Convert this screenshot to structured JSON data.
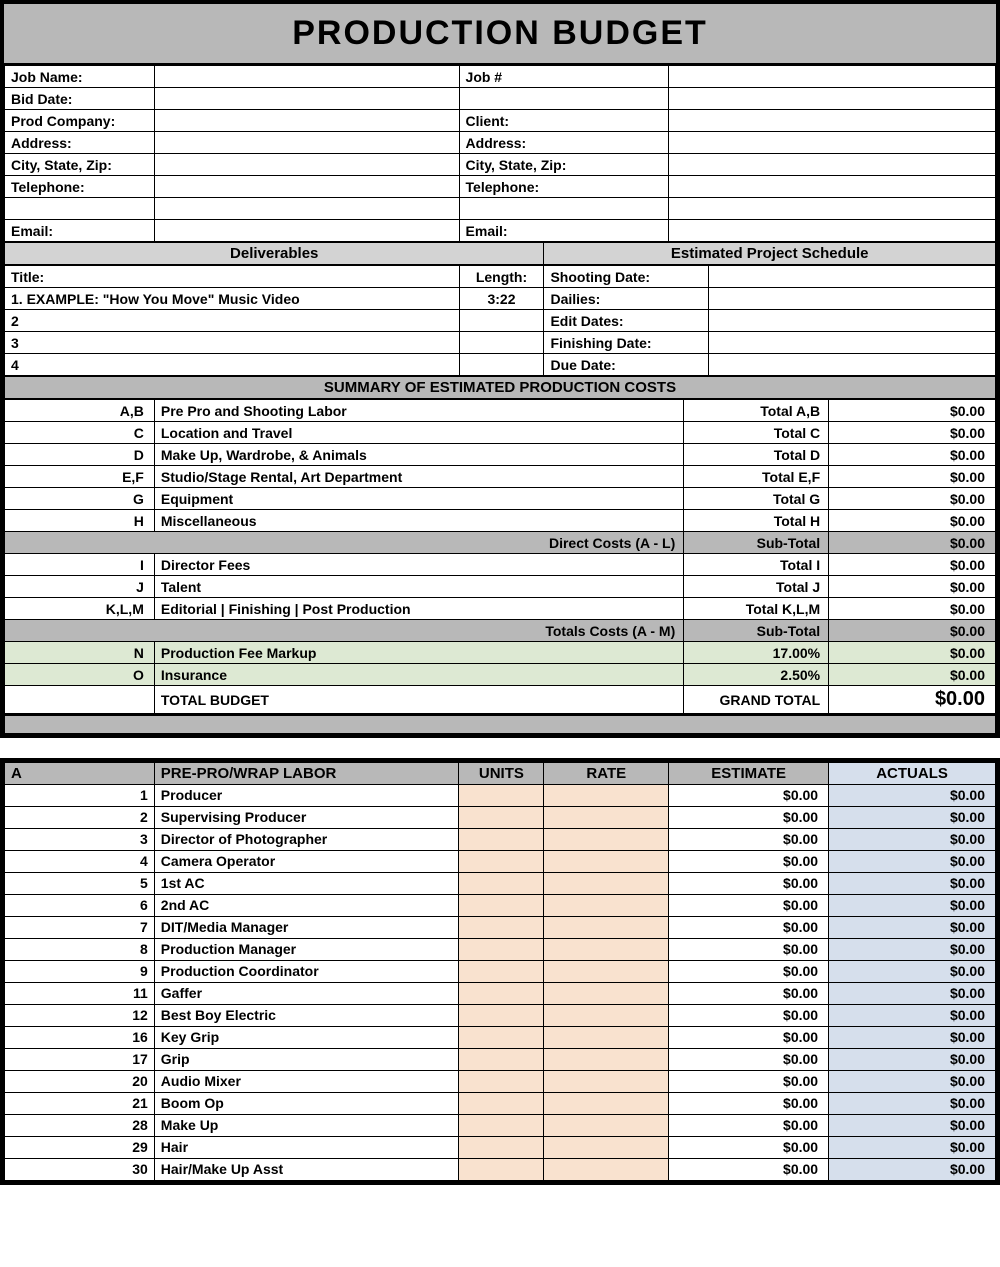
{
  "title": "PRODUCTION BUDGET",
  "info_left": [
    {
      "label": "Job Name:",
      "value": ""
    },
    {
      "label": "Bid Date:",
      "value": ""
    },
    {
      "label": "Prod Company:",
      "value": ""
    },
    {
      "label": "Address:",
      "value": ""
    },
    {
      "label": "City, State, Zip:",
      "value": ""
    },
    {
      "label": "Telephone:",
      "value": ""
    },
    {
      "label": "",
      "value": ""
    },
    {
      "label": "Email:",
      "value": ""
    }
  ],
  "info_right": [
    {
      "label": "Job #",
      "value": ""
    },
    {
      "label": "",
      "value": ""
    },
    {
      "label": "Client:",
      "value": ""
    },
    {
      "label": "Address:",
      "value": ""
    },
    {
      "label": "City, State, Zip:",
      "value": ""
    },
    {
      "label": "Telephone:",
      "value": ""
    },
    {
      "label": "",
      "value": ""
    },
    {
      "label": "Email:",
      "value": ""
    }
  ],
  "deliverables": {
    "header": "Deliverables",
    "title_label": "Title:",
    "length_label": "Length:",
    "rows": [
      {
        "title": "1. EXAMPLE: \"How You Move\" Music Video",
        "length": "3:22"
      },
      {
        "title": "2",
        "length": ""
      },
      {
        "title": "3",
        "length": ""
      },
      {
        "title": "4",
        "length": ""
      }
    ]
  },
  "schedule": {
    "header": "Estimated Project Schedule",
    "rows": [
      {
        "label": "Shooting Date:",
        "value": ""
      },
      {
        "label": "Dailies:",
        "value": ""
      },
      {
        "label": "Edit Dates:",
        "value": ""
      },
      {
        "label": "Finishing Date:",
        "value": ""
      },
      {
        "label": "Due Date:",
        "value": ""
      }
    ]
  },
  "summary": {
    "header": "SUMMARY OF ESTIMATED PRODUCTION COSTS",
    "items": [
      {
        "code": "A,B",
        "desc": "Pre Pro and Shooting Labor",
        "total_label": "Total A,B",
        "amount": "$0.00"
      },
      {
        "code": "C",
        "desc": "Location and Travel",
        "total_label": "Total C",
        "amount": "$0.00"
      },
      {
        "code": "D",
        "desc": "Make Up, Wardrobe, & Animals",
        "total_label": "Total D",
        "amount": "$0.00"
      },
      {
        "code": "E,F",
        "desc": "Studio/Stage Rental, Art Department",
        "total_label": "Total E,F",
        "amount": "$0.00"
      },
      {
        "code": "G",
        "desc": "Equipment",
        "total_label": "Total G",
        "amount": "$0.00"
      },
      {
        "code": "H",
        "desc": "Miscellaneous",
        "total_label": "Total H",
        "amount": "$0.00"
      }
    ],
    "direct_costs": {
      "label": "Direct Costs (A - L)",
      "sub_label": "Sub-Total",
      "amount": "$0.00"
    },
    "items2": [
      {
        "code": "I",
        "desc": "Director Fees",
        "total_label": "Total I",
        "amount": "$0.00"
      },
      {
        "code": "J",
        "desc": "Talent",
        "total_label": "Total J",
        "amount": "$0.00"
      },
      {
        "code": "K,L,M",
        "desc": "Editorial | Finishing | Post Production",
        "total_label": "Total K,L,M",
        "amount": "$0.00"
      }
    ],
    "totals_costs": {
      "label": "Totals Costs (A - M)",
      "sub_label": "Sub-Total",
      "amount": "$0.00"
    },
    "markup": {
      "code": "N",
      "desc": " Production Fee Markup",
      "pct": "17.00%",
      "amount": "$0.00"
    },
    "insurance": {
      "code": "O",
      "desc": "Insurance",
      "pct": "2.50%",
      "amount": "$0.00"
    },
    "total_budget": {
      "desc": "TOTAL BUDGET",
      "label": "GRAND TOTAL",
      "amount": "$0.00"
    }
  },
  "detail": {
    "section_code": "A",
    "section_title": "PRE-PRO/WRAP LABOR",
    "col_units": "UNITS",
    "col_rate": "RATE",
    "col_estimate": "ESTIMATE",
    "col_actuals": "ACTUALS",
    "rows": [
      {
        "n": "1",
        "role": "Producer",
        "est": "$0.00",
        "act": "$0.00"
      },
      {
        "n": "2",
        "role": "Supervising Producer",
        "est": "$0.00",
        "act": "$0.00"
      },
      {
        "n": "3",
        "role": "Director of Photographer",
        "est": "$0.00",
        "act": "$0.00"
      },
      {
        "n": "4",
        "role": "Camera Operator",
        "est": "$0.00",
        "act": "$0.00"
      },
      {
        "n": "5",
        "role": "1st AC",
        "est": "$0.00",
        "act": "$0.00"
      },
      {
        "n": "6",
        "role": "2nd AC",
        "est": "$0.00",
        "act": "$0.00"
      },
      {
        "n": "7",
        "role": "DIT/Media Manager",
        "est": "$0.00",
        "act": "$0.00"
      },
      {
        "n": "8",
        "role": "Production Manager",
        "est": "$0.00",
        "act": "$0.00"
      },
      {
        "n": "9",
        "role": "Production Coordinator",
        "est": "$0.00",
        "act": "$0.00"
      },
      {
        "n": "11",
        "role": "Gaffer",
        "est": "$0.00",
        "act": "$0.00"
      },
      {
        "n": "12",
        "role": "Best Boy Electric",
        "est": "$0.00",
        "act": "$0.00"
      },
      {
        "n": "16",
        "role": "Key Grip",
        "est": "$0.00",
        "act": "$0.00"
      },
      {
        "n": "17",
        "role": "Grip",
        "est": "$0.00",
        "act": "$0.00"
      },
      {
        "n": "20",
        "role": "Audio Mixer",
        "est": "$0.00",
        "act": "$0.00"
      },
      {
        "n": "21",
        "role": "Boom Op",
        "est": "$0.00",
        "act": "$0.00"
      },
      {
        "n": "28",
        "role": "Make Up",
        "est": "$0.00",
        "act": "$0.00"
      },
      {
        "n": "29",
        "role": "Hair",
        "est": "$0.00",
        "act": "$0.00"
      },
      {
        "n": "30",
        "role": "Hair/Make Up Asst",
        "est": "$0.00",
        "act": "$0.00"
      }
    ]
  },
  "colors": {
    "grey_header": "#b8b8b8",
    "light_grey": "#d3d3d3",
    "green": "#dde9d3",
    "peach": "#f9e2cf",
    "blue": "#d6dfec"
  }
}
